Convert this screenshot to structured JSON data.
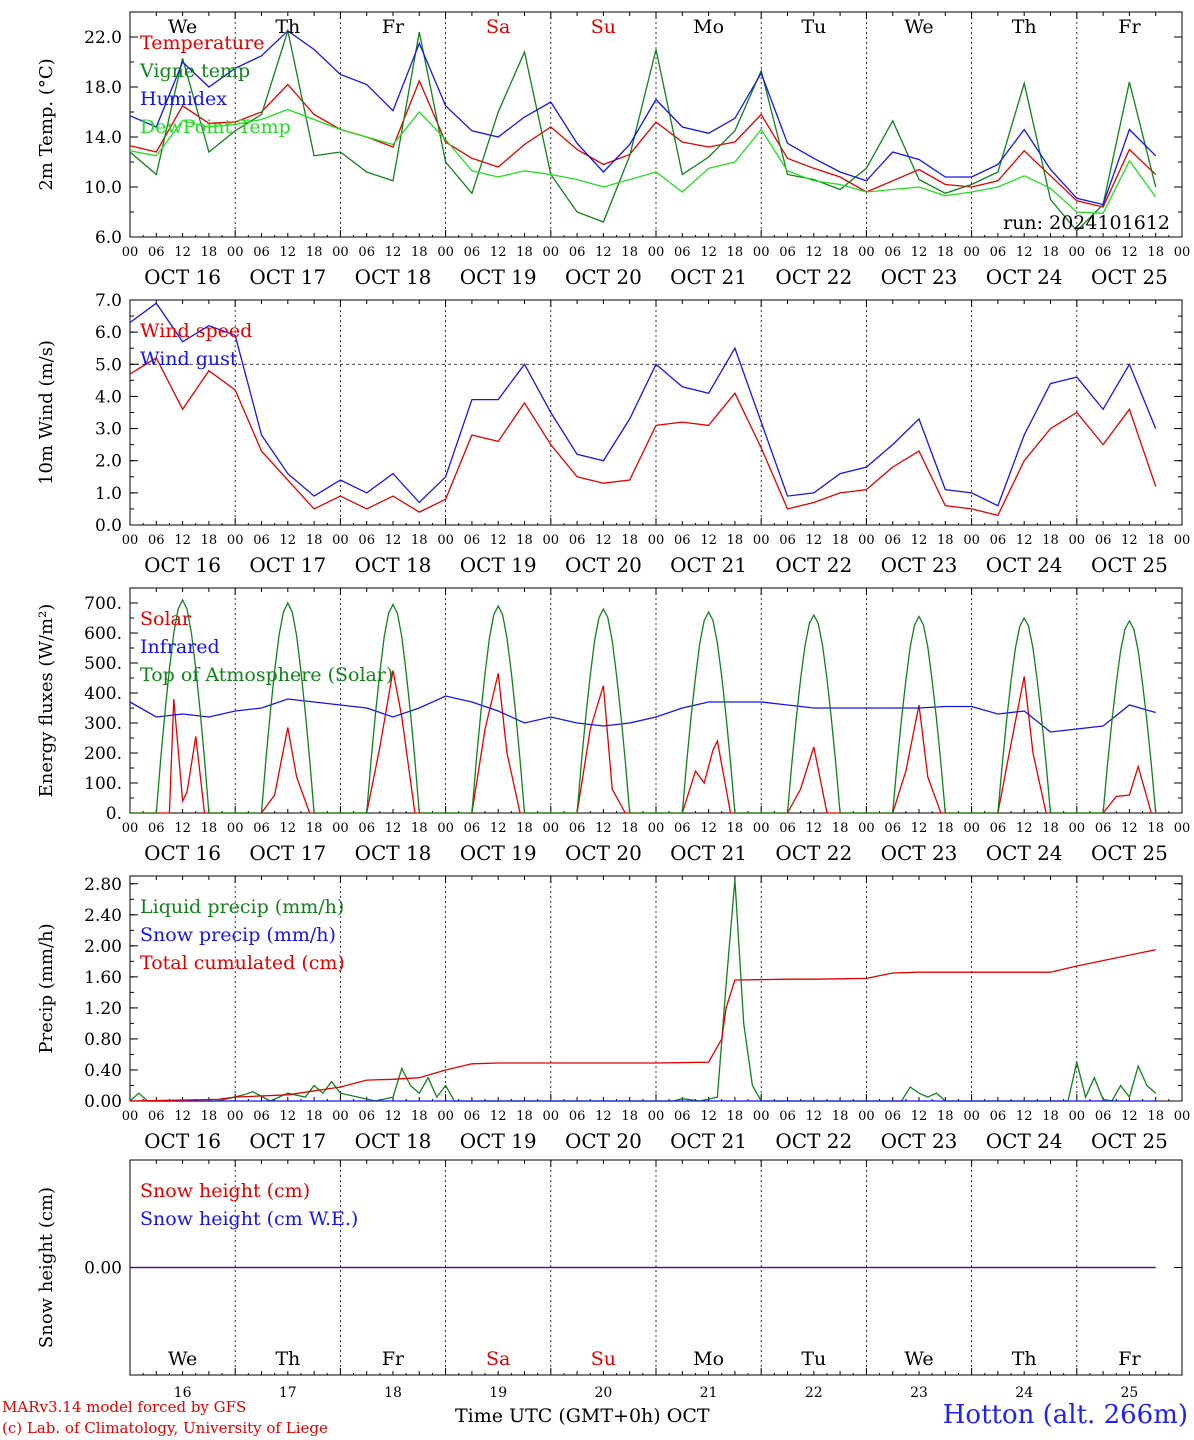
{
  "colors": {
    "red": "#e00000",
    "blue": "#1515e6",
    "green": "#11801a",
    "lightgreen": "#22dd22",
    "purple": "#7a3090"
  },
  "days": [
    "16",
    "17",
    "18",
    "19",
    "20",
    "21",
    "22",
    "23",
    "24",
    "25"
  ],
  "day_headers": [
    "OCT 16",
    "OCT 17",
    "OCT 18",
    "OCT 19",
    "OCT 20",
    "OCT 21",
    "OCT 22",
    "OCT 23",
    "OCT 24",
    "OCT 25"
  ],
  "weekdays": [
    "We",
    "Th",
    "Fr",
    "Sa",
    "Su",
    "Mo",
    "Tu",
    "We",
    "Th",
    "Fr"
  ],
  "weekend_days": [
    "Sa",
    "Su"
  ],
  "hour_ticks": [
    "00",
    "06",
    "12",
    "18"
  ],
  "footer": {
    "credit_line1": "MARv3.14 model forced by GFS",
    "credit_line2": "(c) Lab. of Climatology, University of Liege",
    "x_label": "Time UTC (GMT+0h)",
    "month": "OCT",
    "station": "Hotton (alt. 266m)"
  },
  "chart_data": [
    {
      "type": "line",
      "ylabel": "2m Temp. (°C)",
      "ylim": [
        6.0,
        24.0
      ],
      "yticks": [
        "6.0",
        "10.0",
        "14.0",
        "18.0",
        "22.0"
      ],
      "annotation": "run: 2024101612",
      "x_unit": "hours since Oct 16 00 UTC",
      "series": [
        {
          "name": "Temperature",
          "color": "red",
          "x": [
            0,
            6,
            12,
            18,
            24,
            30,
            36,
            42,
            48,
            54,
            60,
            66,
            72,
            78,
            84,
            90,
            96,
            102,
            108,
            114,
            120,
            126,
            132,
            138,
            144,
            150,
            156,
            162,
            168,
            174,
            180,
            186,
            192,
            198,
            204,
            210,
            216,
            222,
            228,
            234
          ],
          "values": [
            13.3,
            12.8,
            16.5,
            15.1,
            15.2,
            16.0,
            18.2,
            15.8,
            14.6,
            14.0,
            13.2,
            18.5,
            13.6,
            12.3,
            11.6,
            13.4,
            14.8,
            13.0,
            11.8,
            12.6,
            15.2,
            13.6,
            13.2,
            13.6,
            15.8,
            12.3,
            11.5,
            10.8,
            9.6,
            10.5,
            11.4,
            10.2,
            10.0,
            10.5,
            12.9,
            10.9,
            8.9,
            8.4,
            13.0,
            11.0
          ]
        },
        {
          "name": "Vigne temp",
          "color": "green",
          "x": [
            0,
            6,
            12,
            18,
            24,
            30,
            36,
            42,
            48,
            54,
            60,
            66,
            72,
            78,
            84,
            90,
            96,
            102,
            108,
            114,
            120,
            126,
            132,
            138,
            144,
            150,
            156,
            162,
            168,
            174,
            180,
            186,
            192,
            198,
            204,
            210,
            216,
            222,
            228,
            234
          ],
          "values": [
            12.8,
            11.0,
            20.3,
            12.8,
            14.5,
            15.8,
            22.5,
            12.5,
            12.8,
            11.2,
            10.5,
            22.4,
            12.0,
            9.5,
            16.0,
            20.8,
            11.0,
            8.0,
            7.2,
            12.5,
            21.0,
            11.0,
            12.4,
            14.5,
            19.3,
            11.0,
            10.6,
            9.8,
            11.5,
            15.3,
            10.6,
            9.5,
            10.2,
            11.2,
            18.3,
            9.0,
            6.5,
            8.6,
            18.4,
            10.0
          ]
        },
        {
          "name": "Humidex",
          "color": "blue",
          "x": [
            0,
            6,
            12,
            18,
            24,
            30,
            36,
            42,
            48,
            54,
            60,
            66,
            72,
            78,
            84,
            90,
            96,
            102,
            108,
            114,
            120,
            126,
            132,
            138,
            144,
            150,
            156,
            162,
            168,
            174,
            180,
            186,
            192,
            198,
            204,
            210,
            216,
            222,
            228,
            234
          ],
          "values": [
            15.7,
            14.8,
            20.0,
            18.0,
            19.5,
            20.5,
            22.5,
            21.0,
            19.0,
            18.2,
            16.1,
            21.5,
            16.5,
            14.5,
            14.0,
            15.6,
            16.8,
            13.5,
            11.2,
            13.4,
            17.0,
            14.8,
            14.3,
            15.5,
            19.1,
            13.5,
            12.3,
            11.2,
            10.5,
            12.8,
            12.2,
            10.8,
            10.8,
            11.8,
            14.6,
            11.4,
            9.1,
            8.6,
            14.6,
            12.5
          ]
        },
        {
          "name": "DewPoint Temp",
          "color": "lightgreen",
          "x": [
            0,
            6,
            12,
            18,
            24,
            30,
            36,
            42,
            48,
            54,
            60,
            66,
            72,
            78,
            84,
            90,
            96,
            102,
            108,
            114,
            120,
            126,
            132,
            138,
            144,
            150,
            156,
            162,
            168,
            174,
            180,
            186,
            192,
            198,
            204,
            210,
            216,
            222,
            228,
            234
          ],
          "values": [
            12.9,
            12.5,
            15.3,
            14.8,
            15.0,
            15.4,
            16.2,
            15.4,
            14.6,
            14.0,
            13.4,
            16.0,
            13.8,
            11.3,
            10.8,
            11.3,
            11.0,
            10.6,
            10.0,
            10.6,
            11.2,
            9.6,
            11.5,
            12.0,
            14.6,
            11.3,
            10.5,
            10.2,
            9.6,
            9.8,
            10.0,
            9.3,
            9.6,
            10.0,
            10.9,
            9.9,
            8.0,
            7.9,
            12.1,
            9.2
          ]
        }
      ]
    },
    {
      "type": "line",
      "ylabel": "10m Wind (m/s)",
      "ylim": [
        0.0,
        7.0
      ],
      "yticks": [
        "0.0",
        "1.0",
        "2.0",
        "3.0",
        "4.0",
        "5.0",
        "6.0",
        "7.0"
      ],
      "ref_line": 5.0,
      "x_unit": "hours since Oct 16 00 UTC",
      "series": [
        {
          "name": "Wind speed",
          "color": "red",
          "x": [
            0,
            6,
            12,
            18,
            24,
            30,
            36,
            42,
            48,
            54,
            60,
            66,
            72,
            78,
            84,
            90,
            96,
            102,
            108,
            114,
            120,
            126,
            132,
            138,
            144,
            150,
            156,
            162,
            168,
            174,
            180,
            186,
            192,
            198,
            204,
            210,
            216,
            222,
            228,
            234
          ],
          "values": [
            4.7,
            5.2,
            3.6,
            4.8,
            4.2,
            2.3,
            1.4,
            0.5,
            0.9,
            0.5,
            0.9,
            0.4,
            0.8,
            2.8,
            2.6,
            3.8,
            2.5,
            1.5,
            1.3,
            1.4,
            3.1,
            3.2,
            3.1,
            4.1,
            2.4,
            0.5,
            0.7,
            1.0,
            1.1,
            1.8,
            2.3,
            0.6,
            0.5,
            0.3,
            2.0,
            3.0,
            3.5,
            2.5,
            3.6,
            1.2
          ]
        },
        {
          "name": "Wind gust",
          "color": "blue",
          "x": [
            0,
            6,
            12,
            18,
            24,
            30,
            36,
            42,
            48,
            54,
            60,
            66,
            72,
            78,
            84,
            90,
            96,
            102,
            108,
            114,
            120,
            126,
            132,
            138,
            144,
            150,
            156,
            162,
            168,
            174,
            180,
            186,
            192,
            198,
            204,
            210,
            216,
            222,
            228,
            234
          ],
          "values": [
            6.3,
            6.9,
            5.7,
            6.2,
            5.9,
            2.8,
            1.6,
            0.9,
            1.4,
            1.0,
            1.6,
            0.7,
            1.5,
            3.9,
            3.9,
            5.0,
            3.5,
            2.2,
            2.0,
            3.3,
            5.0,
            4.3,
            4.1,
            5.5,
            3.2,
            0.9,
            1.0,
            1.6,
            1.8,
            2.5,
            3.3,
            1.1,
            1.0,
            0.6,
            2.8,
            4.4,
            4.6,
            3.6,
            5.0,
            3.0
          ]
        }
      ]
    },
    {
      "type": "line",
      "ylabel": "Energy fluxes (W/m²)",
      "ylim": [
        0,
        750
      ],
      "yticks": [
        "0.",
        "100.",
        "200.",
        "300.",
        "400.",
        "500.",
        "600.",
        "700."
      ],
      "x_unit": "hours since Oct 16 00 UTC",
      "series": [
        {
          "name": "Solar",
          "color": "red",
          "x": [
            0,
            6,
            9,
            10,
            12,
            13,
            15,
            17,
            30,
            33,
            36,
            38,
            41,
            54,
            57,
            60,
            62,
            65,
            78,
            81,
            84,
            86,
            89,
            102,
            105,
            108,
            110,
            113,
            126,
            129,
            131,
            133,
            134,
            137,
            150,
            153,
            156,
            159,
            174,
            177,
            180,
            182,
            185,
            198,
            201,
            204,
            206,
            209,
            222,
            225,
            228,
            230,
            233
          ],
          "values": [
            0,
            0,
            0,
            380,
            40,
            70,
            255,
            0,
            0,
            60,
            285,
            120,
            0,
            0,
            220,
            475,
            320,
            0,
            0,
            280,
            465,
            200,
            0,
            0,
            280,
            425,
            80,
            0,
            0,
            140,
            100,
            210,
            240,
            0,
            0,
            80,
            220,
            0,
            0,
            140,
            360,
            120,
            0,
            0,
            230,
            455,
            200,
            0,
            0,
            55,
            60,
            155,
            0
          ]
        },
        {
          "name": "Infrared",
          "color": "blue",
          "x": [
            0,
            6,
            12,
            18,
            24,
            30,
            36,
            42,
            48,
            54,
            60,
            66,
            72,
            78,
            84,
            90,
            96,
            102,
            108,
            114,
            120,
            126,
            132,
            138,
            144,
            150,
            156,
            162,
            168,
            174,
            180,
            186,
            192,
            198,
            204,
            210,
            216,
            222,
            228,
            234
          ],
          "values": [
            370,
            320,
            330,
            320,
            340,
            350,
            380,
            370,
            360,
            350,
            320,
            350,
            390,
            370,
            340,
            300,
            320,
            300,
            290,
            300,
            320,
            350,
            370,
            370,
            370,
            360,
            350,
            350,
            350,
            350,
            350,
            355,
            355,
            330,
            340,
            270,
            280,
            290,
            360,
            335
          ]
        },
        {
          "name": "Top of Atmosphere (Solar)",
          "color": "green",
          "x": [
            0,
            6,
            7,
            8,
            9,
            10,
            11,
            12,
            13,
            14,
            15,
            16,
            17,
            18
          ],
          "values": [
            0,
            0,
            180,
            340,
            480,
            600,
            680,
            710,
            680,
            600,
            480,
            340,
            180,
            0
          ],
          "repeat_daily": true,
          "peaks": [
            710,
            700,
            695,
            690,
            680,
            670,
            660,
            655,
            650,
            640
          ]
        }
      ]
    },
    {
      "type": "line",
      "ylabel": "Precip (mm/h)",
      "ylim": [
        0.0,
        2.9
      ],
      "yticks": [
        "0.00",
        "0.40",
        "0.80",
        "1.20",
        "1.60",
        "2.00",
        "2.40",
        "2.80"
      ],
      "x_unit": "hours since Oct 16 00 UTC",
      "series": [
        {
          "name": "Liquid precip (mm/h)",
          "color": "green",
          "x": [
            0,
            2,
            4,
            20,
            26,
            28,
            32,
            36,
            40,
            42,
            44,
            46,
            48,
            56,
            60,
            62,
            64,
            66,
            68,
            70,
            72,
            74,
            100,
            124,
            126,
            130,
            134,
            136,
            138,
            140,
            142,
            144,
            170,
            176,
            178,
            180,
            182,
            184,
            186,
            210,
            214,
            216,
            218,
            220,
            222,
            224,
            226,
            228,
            230,
            232,
            234
          ],
          "values": [
            0,
            0.1,
            0,
            0,
            0.08,
            0.12,
            0,
            0.1,
            0.05,
            0.2,
            0.1,
            0.25,
            0.1,
            0,
            0.05,
            0.42,
            0.2,
            0.1,
            0.3,
            0.05,
            0.2,
            0,
            0,
            0,
            0.03,
            0,
            0.05,
            1.5,
            2.85,
            1.0,
            0.2,
            0,
            0,
            0,
            0.18,
            0.1,
            0.05,
            0.1,
            0,
            0,
            0,
            0.5,
            0.05,
            0.3,
            0.02,
            0,
            0.2,
            0.05,
            0.45,
            0.2,
            0.1
          ]
        },
        {
          "name": "Snow precip (mm/h)",
          "color": "blue",
          "x": [
            0,
            234
          ],
          "values": [
            0,
            0
          ]
        },
        {
          "name": "Total cumulated (cm)",
          "color": "red",
          "x": [
            0,
            20,
            24,
            36,
            48,
            54,
            60,
            66,
            72,
            78,
            84,
            96,
            120,
            132,
            135,
            136,
            138,
            150,
            156,
            168,
            174,
            180,
            210,
            216,
            234
          ],
          "values": [
            0,
            0.02,
            0.05,
            0.08,
            0.18,
            0.27,
            0.28,
            0.3,
            0.4,
            0.48,
            0.49,
            0.49,
            0.49,
            0.5,
            0.8,
            1.2,
            1.56,
            1.57,
            1.57,
            1.58,
            1.65,
            1.66,
            1.66,
            1.74,
            1.95
          ]
        }
      ]
    },
    {
      "type": "line",
      "ylabel": "Snow height (cm)",
      "ylim": [
        -1.0,
        1.0
      ],
      "yticks": [
        "0.00"
      ],
      "x_unit": "hours since Oct 16 00 UTC",
      "series": [
        {
          "name": "Snow height (cm)",
          "color": "red",
          "x": [
            0,
            234
          ],
          "values": [
            0,
            0
          ]
        },
        {
          "name": "Snow height (cm W.E.)",
          "color": "blue",
          "x": [
            0,
            234
          ],
          "values": [
            0,
            0
          ]
        }
      ]
    }
  ]
}
